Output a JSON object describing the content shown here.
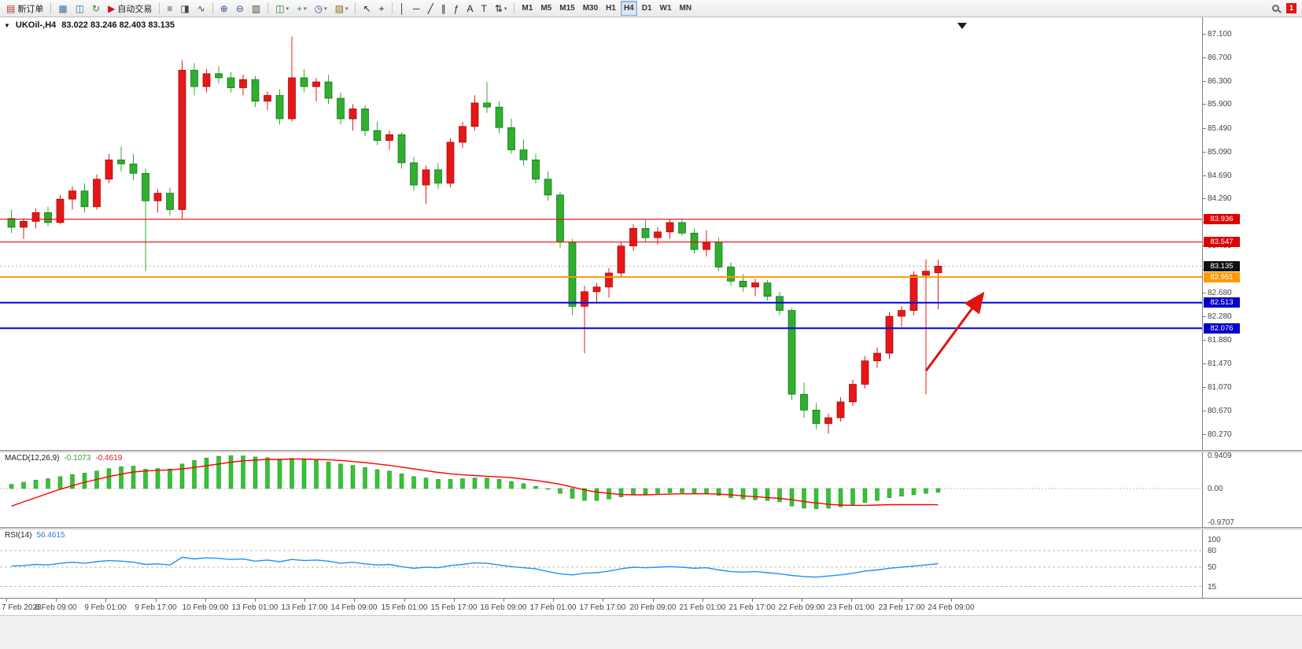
{
  "icons": {
    "dropdown": "▾",
    "quick_trade_arrow": "▼"
  },
  "toolbar": {
    "items": [
      {
        "name": "new-order-button",
        "glyph": "▤",
        "glyph_color": "#b03030",
        "label": "新订单"
      },
      {
        "type": "sep"
      },
      {
        "name": "charts-button",
        "glyph": "▦",
        "glyph_color": "#3a6ea5"
      },
      {
        "name": "market-depth-button",
        "glyph": "◫",
        "glyph_color": "#3a6ea5"
      },
      {
        "name": "refresh-button",
        "glyph": "↻",
        "glyph_color": "#2e7d32"
      },
      {
        "name": "autotrading-button",
        "glyph": "▶",
        "glyph_color": "#cc1111",
        "label": "自动交易"
      },
      {
        "type": "sep"
      },
      {
        "name": "bar-chart-button",
        "glyph": "≡",
        "glyph_color": "#444444"
      },
      {
        "name": "candlestick-chart-button",
        "glyph": "◨",
        "glyph_color": "#444444"
      },
      {
        "name": "line-chart-button",
        "glyph": "∿",
        "glyph_color": "#444444"
      },
      {
        "type": "sep"
      },
      {
        "name": "zoom-in-button",
        "glyph": "⊕",
        "glyph_color": "#2a4d8f"
      },
      {
        "name": "zoom-out-button",
        "glyph": "⊖",
        "glyph_color": "#2a4d8f"
      },
      {
        "name": "tile-windows-button",
        "glyph": "▥",
        "glyph_color": "#444444"
      },
      {
        "type": "sep"
      },
      {
        "name": "new-chart-button",
        "glyph": "◫",
        "glyph_color": "#2e7d32",
        "dropdown": true
      },
      {
        "name": "indicators-button",
        "glyph": "+",
        "glyph_color": "#1c9c1c",
        "dropdown": true
      },
      {
        "name": "periods-button",
        "glyph": "◷",
        "glyph_color": "#2a4d8f",
        "dropdown": true
      },
      {
        "name": "templates-button",
        "glyph": "▨",
        "glyph_color": "#8a6d1a",
        "dropdown": true
      },
      {
        "type": "sep"
      },
      {
        "name": "cursor-button",
        "glyph": "↖",
        "glyph_color": "#222222"
      },
      {
        "name": "crosshair-button",
        "glyph": "+",
        "glyph_color": "#222222"
      },
      {
        "type": "sep"
      },
      {
        "name": "vertical-line-button",
        "glyph": "│",
        "glyph_color": "#222222"
      },
      {
        "name": "horizontal-line-button",
        "glyph": "─",
        "glyph_color": "#222222"
      },
      {
        "name": "trendline-button",
        "glyph": "╱",
        "glyph_color": "#222222"
      },
      {
        "name": "channel-button",
        "glyph": "∥",
        "glyph_color": "#222222"
      },
      {
        "name": "fibonacci-button",
        "glyph": "ƒ",
        "glyph_color": "#222222"
      },
      {
        "name": "text-button",
        "glyph": "A",
        "glyph_color": "#222222"
      },
      {
        "name": "text-label-button",
        "glyph": "T",
        "glyph_color": "#222222"
      },
      {
        "name": "arrows-button",
        "glyph": "⇅",
        "glyph_color": "#222222",
        "dropdown": true
      },
      {
        "type": "sep"
      },
      {
        "name": "tf-m1-button",
        "label": "M1",
        "tf": true
      },
      {
        "name": "tf-m5-button",
        "label": "M5",
        "tf": true
      },
      {
        "name": "tf-m15-button",
        "label": "M15",
        "tf": true
      },
      {
        "name": "tf-m30-button",
        "label": "M30",
        "tf": true
      },
      {
        "name": "tf-h1-button",
        "label": "H1",
        "tf": true
      },
      {
        "name": "tf-h4-button",
        "label": "H4",
        "tf": true,
        "active": true
      },
      {
        "name": "tf-d1-button",
        "label": "D1",
        "tf": true
      },
      {
        "name": "tf-w1-button",
        "label": "W1",
        "tf": true
      },
      {
        "name": "tf-mn-button",
        "label": "MN",
        "tf": true
      },
      {
        "type": "spacer"
      },
      {
        "name": "search-button",
        "css": "magnifier"
      },
      {
        "type": "badge",
        "name": "notification-badge",
        "label": "1"
      }
    ]
  },
  "chart": {
    "title": "UKOil-,H4",
    "ohlc": "83.022 83.246 82.403 83.135"
  },
  "chart_data": {
    "type": "candlestick",
    "symbol": "UKOil-",
    "timeframe": "H4",
    "colors": {
      "bull": "#e81717",
      "bull_border": "#9a0000",
      "bear": "#2fae2f",
      "bear_border": "#0d6e0d",
      "macd_histogram": "#35c335",
      "macd_histogram_border": "#1d8a1d",
      "macd_signal": "#ff0000",
      "rsi_line": "#1e90ff"
    },
    "candles": [
      [
        83.95,
        84.1,
        83.7,
        83.8
      ],
      [
        83.8,
        83.95,
        83.6,
        83.9
      ],
      [
        83.9,
        84.12,
        83.78,
        84.05
      ],
      [
        84.05,
        84.15,
        83.82,
        83.88
      ],
      [
        83.88,
        84.35,
        83.85,
        84.28
      ],
      [
        84.28,
        84.5,
        84.1,
        84.42
      ],
      [
        84.42,
        84.55,
        84.05,
        84.15
      ],
      [
        84.15,
        84.7,
        84.1,
        84.62
      ],
      [
        84.62,
        85.05,
        84.55,
        84.95
      ],
      [
        84.95,
        85.18,
        84.75,
        84.88
      ],
      [
        84.88,
        85.05,
        84.6,
        84.72
      ],
      [
        84.72,
        84.8,
        83.05,
        84.25
      ],
      [
        84.25,
        84.45,
        84.05,
        84.38
      ],
      [
        84.38,
        84.48,
        84.0,
        84.1
      ],
      [
        84.1,
        86.65,
        83.95,
        86.48
      ],
      [
        86.48,
        86.6,
        86.05,
        86.2
      ],
      [
        86.2,
        86.5,
        86.1,
        86.42
      ],
      [
        86.42,
        86.55,
        86.25,
        86.35
      ],
      [
        86.35,
        86.45,
        86.1,
        86.18
      ],
      [
        86.18,
        86.4,
        86.05,
        86.32
      ],
      [
        86.32,
        86.38,
        85.85,
        85.95
      ],
      [
        85.95,
        86.12,
        85.8,
        86.05
      ],
      [
        86.05,
        86.15,
        85.55,
        85.65
      ],
      [
        85.65,
        87.05,
        85.6,
        86.35
      ],
      [
        86.35,
        86.5,
        86.1,
        86.2
      ],
      [
        86.2,
        86.35,
        85.95,
        86.28
      ],
      [
        86.28,
        86.4,
        85.9,
        86.0
      ],
      [
        86.0,
        86.1,
        85.55,
        85.65
      ],
      [
        85.65,
        85.9,
        85.45,
        85.82
      ],
      [
        85.82,
        85.88,
        85.35,
        85.45
      ],
      [
        85.45,
        85.6,
        85.2,
        85.28
      ],
      [
        85.28,
        85.45,
        85.12,
        85.38
      ],
      [
        85.38,
        85.42,
        84.8,
        84.9
      ],
      [
        84.9,
        85.0,
        84.42,
        84.52
      ],
      [
        84.52,
        84.85,
        84.2,
        84.78
      ],
      [
        84.78,
        84.9,
        84.45,
        84.55
      ],
      [
        84.55,
        85.32,
        84.48,
        85.25
      ],
      [
        85.25,
        85.6,
        85.15,
        85.52
      ],
      [
        85.52,
        86.05,
        85.45,
        85.92
      ],
      [
        85.92,
        86.28,
        85.75,
        85.85
      ],
      [
        85.85,
        85.95,
        85.4,
        85.5
      ],
      [
        85.5,
        85.65,
        85.05,
        85.12
      ],
      [
        85.12,
        85.3,
        84.85,
        84.95
      ],
      [
        84.95,
        85.05,
        84.55,
        84.62
      ],
      [
        84.62,
        84.75,
        84.25,
        84.35
      ],
      [
        84.35,
        84.4,
        83.45,
        83.55
      ],
      [
        83.55,
        83.6,
        82.3,
        82.45
      ],
      [
        82.45,
        82.8,
        81.65,
        82.7
      ],
      [
        82.7,
        82.85,
        82.5,
        82.78
      ],
      [
        82.78,
        83.1,
        82.6,
        83.02
      ],
      [
        83.02,
        83.55,
        82.95,
        83.48
      ],
      [
        83.48,
        83.85,
        83.4,
        83.78
      ],
      [
        83.78,
        83.92,
        83.55,
        83.62
      ],
      [
        83.62,
        83.8,
        83.5,
        83.72
      ],
      [
        83.72,
        83.95,
        83.6,
        83.88
      ],
      [
        83.88,
        83.94,
        83.65,
        83.7
      ],
      [
        83.7,
        83.78,
        83.35,
        83.42
      ],
      [
        83.42,
        83.75,
        83.3,
        83.55
      ],
      [
        83.55,
        83.62,
        83.05,
        83.12
      ],
      [
        83.12,
        83.2,
        82.8,
        82.88
      ],
      [
        82.88,
        83.0,
        82.7,
        82.78
      ],
      [
        82.78,
        82.92,
        82.62,
        82.85
      ],
      [
        82.85,
        82.9,
        82.55,
        82.62
      ],
      [
        82.62,
        82.7,
        82.3,
        82.38
      ],
      [
        82.38,
        82.42,
        80.85,
        80.95
      ],
      [
        80.95,
        81.15,
        80.55,
        80.68
      ],
      [
        80.68,
        80.8,
        80.35,
        80.45
      ],
      [
        80.45,
        80.62,
        80.28,
        80.55
      ],
      [
        80.55,
        80.9,
        80.48,
        80.82
      ],
      [
        80.82,
        81.2,
        80.75,
        81.12
      ],
      [
        81.12,
        81.6,
        81.05,
        81.52
      ],
      [
        81.52,
        81.75,
        81.4,
        81.65
      ],
      [
        81.65,
        82.35,
        81.55,
        82.28
      ],
      [
        82.28,
        82.45,
        82.1,
        82.38
      ],
      [
        82.38,
        83.05,
        82.3,
        82.98
      ],
      [
        82.98,
        83.25,
        80.95,
        83.05
      ],
      [
        83.022,
        83.246,
        82.403,
        83.135
      ]
    ],
    "y_axis_labels": [
      "87.100",
      "86.700",
      "86.300",
      "85.900",
      "85.490",
      "85.090",
      "84.690",
      "84.290",
      "83.890",
      "83.485",
      "83.085",
      "82.680",
      "82.280",
      "81.880",
      "81.470",
      "81.070",
      "80.670",
      "80.270"
    ],
    "x_axis_labels": [
      "7 Feb 2023",
      "8 Feb 09:00",
      "9 Feb 01:00",
      "9 Feb 17:00",
      "10 Feb 09:00",
      "13 Feb 01:00",
      "13 Feb 17:00",
      "14 Feb 09:00",
      "15 Feb 01:00",
      "15 Feb 17:00",
      "16 Feb 09:00",
      "17 Feb 01:00",
      "17 Feb 17:00",
      "20 Feb 09:00",
      "21 Feb 01:00",
      "21 Feb 17:00",
      "22 Feb 09:00",
      "23 Feb 01:00",
      "23 Feb 17:00",
      "24 Feb 09:00"
    ],
    "horizontal_lines": [
      {
        "price": 83.936,
        "label": "83.936",
        "color": "#ff0000",
        "width": 1.2,
        "badge_color": "#dd0000"
      },
      {
        "price": 83.547,
        "label": "83.547",
        "color": "#ff0000",
        "width": 1.2,
        "badge_color": "#dd0000"
      },
      {
        "price": 82.951,
        "label": "82.951",
        "color": "#ff9900",
        "width": 2,
        "badge_color": "#ff9900"
      },
      {
        "price": 82.513,
        "label": "82.513",
        "color": "#0000ee",
        "width": 2,
        "badge_color": "#0000cc"
      },
      {
        "price": 82.076,
        "label": "82.076",
        "color": "#0000ee",
        "width": 2,
        "badge_color": "#0000cc"
      }
    ],
    "current_price": {
      "label": "83.135",
      "value": 83.135,
      "badge_color": "#101010"
    },
    "annotation_arrow": {
      "color": "#e01212",
      "from": {
        "bar": 75.3,
        "price": 81.35
      },
      "to": {
        "bar": 79.8,
        "price": 82.62
      }
    },
    "indicators": {
      "macd": {
        "label": "MACD(12,26,9)",
        "value_main": "-0.1073",
        "value_signal": "-0.4619",
        "axis_labels": [
          "0.9409",
          "0.00",
          "-0.9707"
        ],
        "histogram": [
          0.12,
          0.18,
          0.24,
          0.28,
          0.34,
          0.4,
          0.44,
          0.5,
          0.57,
          0.62,
          0.64,
          0.55,
          0.57,
          0.56,
          0.7,
          0.8,
          0.87,
          0.92,
          0.94,
          0.93,
          0.9,
          0.88,
          0.84,
          0.86,
          0.84,
          0.8,
          0.76,
          0.7,
          0.66,
          0.6,
          0.54,
          0.5,
          0.42,
          0.34,
          0.3,
          0.26,
          0.26,
          0.28,
          0.3,
          0.3,
          0.26,
          0.2,
          0.14,
          0.06,
          -0.02,
          -0.14,
          -0.28,
          -0.34,
          -0.34,
          -0.3,
          -0.24,
          -0.18,
          -0.16,
          -0.14,
          -0.12,
          -0.12,
          -0.14,
          -0.16,
          -0.2,
          -0.26,
          -0.3,
          -0.32,
          -0.34,
          -0.38,
          -0.5,
          -0.56,
          -0.58,
          -0.56,
          -0.52,
          -0.46,
          -0.4,
          -0.34,
          -0.26,
          -0.22,
          -0.18,
          -0.14,
          -0.1073
        ],
        "signal": [
          -0.5,
          -0.38,
          -0.26,
          -0.14,
          -0.02,
          0.08,
          0.18,
          0.26,
          0.34,
          0.41,
          0.47,
          0.5,
          0.52,
          0.53,
          0.56,
          0.6,
          0.65,
          0.7,
          0.75,
          0.79,
          0.81,
          0.83,
          0.83,
          0.84,
          0.84,
          0.83,
          0.82,
          0.8,
          0.77,
          0.74,
          0.7,
          0.66,
          0.61,
          0.56,
          0.51,
          0.46,
          0.42,
          0.39,
          0.37,
          0.35,
          0.33,
          0.31,
          0.27,
          0.23,
          0.18,
          0.12,
          0.04,
          -0.04,
          -0.1,
          -0.14,
          -0.17,
          -0.18,
          -0.18,
          -0.17,
          -0.16,
          -0.15,
          -0.15,
          -0.15,
          -0.16,
          -0.18,
          -0.21,
          -0.23,
          -0.26,
          -0.28,
          -0.32,
          -0.37,
          -0.41,
          -0.45,
          -0.47,
          -0.48,
          -0.48,
          -0.47,
          -0.46,
          -0.46,
          -0.46,
          -0.46,
          -0.4619
        ]
      },
      "rsi": {
        "label": "RSI(14)",
        "value": "56.4615",
        "axis_labels": [
          "100",
          "80",
          "50",
          "15"
        ],
        "levels": [
          80,
          50,
          15
        ],
        "values": [
          52,
          53,
          55,
          54,
          57,
          59,
          57,
          60,
          62,
          61,
          59,
          55,
          56,
          54,
          68,
          65,
          67,
          66,
          64,
          65,
          61,
          63,
          60,
          64,
          62,
          63,
          61,
          57,
          59,
          56,
          54,
          55,
          51,
          48,
          50,
          49,
          53,
          55,
          58,
          57,
          54,
          51,
          49,
          47,
          42,
          38,
          36,
          39,
          40,
          43,
          47,
          50,
          49,
          50,
          51,
          50,
          48,
          49,
          45,
          42,
          41,
          42,
          40,
          38,
          35,
          33,
          32,
          34,
          36,
          39,
          43,
          45,
          48,
          50,
          52,
          54,
          56.4615
        ]
      }
    }
  }
}
